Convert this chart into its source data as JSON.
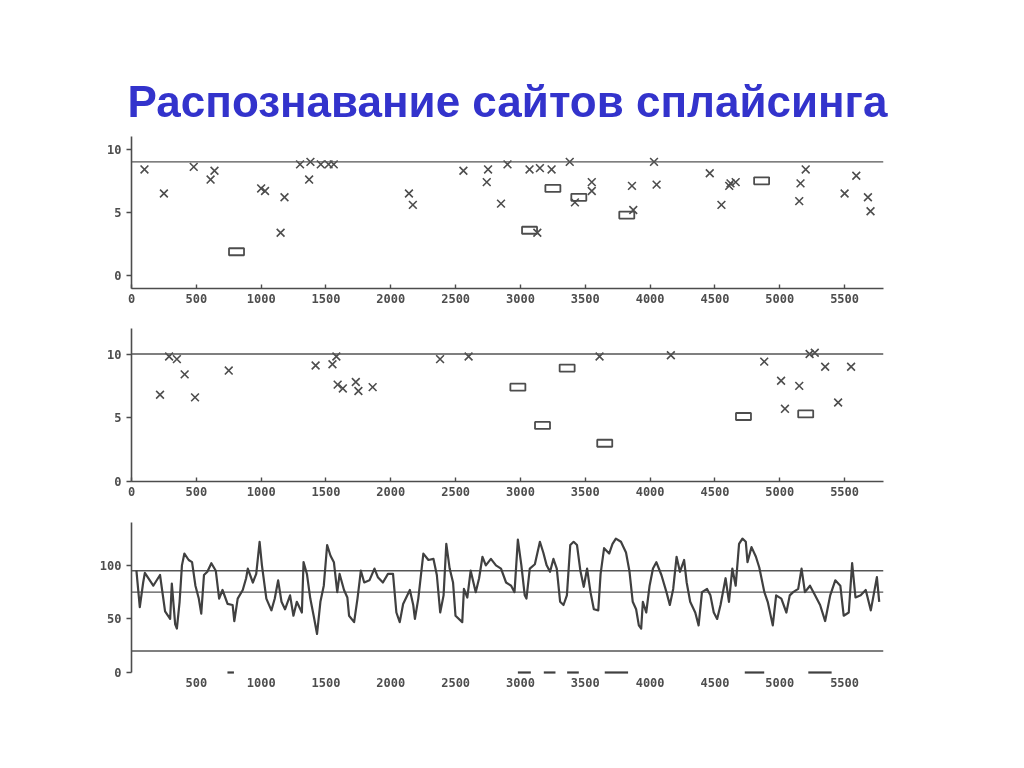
{
  "chart_data": [
    {
      "type": "scatter",
      "title": "Распознавание сайтов сплайсинга",
      "xlim": [
        0,
        5800
      ],
      "ylim": [
        -1,
        11
      ],
      "xticks": [
        0,
        500,
        1000,
        1500,
        2000,
        2500,
        3000,
        3500,
        4000,
        4500,
        5000,
        5500
      ],
      "yticks": [
        0,
        5,
        10
      ],
      "grid": false,
      "ref_lines": [
        {
          "axis": "y",
          "value": 9,
          "color": "#555555"
        }
      ],
      "series": [
        {
          "marker": "cross",
          "color": "#4d4d4d",
          "x": [
            100,
            250,
            480,
            640,
            610,
            1000,
            1030,
            1180,
            1150,
            1300,
            1370,
            1380,
            1460,
            1520,
            1560,
            2140,
            2170,
            2560,
            2750,
            2740,
            2850,
            2900,
            3070,
            3150,
            3240,
            3380,
            3550,
            3550,
            3420,
            3860,
            4050,
            4030,
            3870,
            3130,
            4460,
            4550,
            4620,
            4660,
            4610,
            5200,
            5160,
            5150,
            5590,
            5500,
            5680,
            5700
          ],
          "values": [
            8.4,
            6.5,
            8.6,
            8.3,
            7.6,
            6.9,
            6.7,
            6.2,
            3.4,
            8.8,
            7.6,
            9.0,
            8.8,
            8.8,
            8.8,
            6.5,
            5.6,
            8.3,
            8.4,
            7.4,
            5.7,
            8.8,
            8.4,
            8.5,
            8.4,
            9.0,
            7.4,
            6.7,
            5.8,
            7.1,
            7.2,
            9.0,
            5.2,
            3.4,
            8.1,
            5.6,
            7.3,
            7.4,
            7.1,
            8.4,
            7.3,
            5.9,
            7.9,
            6.5,
            6.2,
            5.1
          ]
        },
        {
          "marker": "square",
          "color": "#4d4d4d",
          "x": [
            810,
            3070,
            3250,
            3450,
            3820,
            4860
          ],
          "values": [
            1.9,
            3.6,
            6.9,
            6.2,
            4.8,
            7.5
          ]
        }
      ]
    },
    {
      "type": "scatter",
      "xlim": [
        0,
        5800
      ],
      "ylim": [
        0,
        12
      ],
      "xticks": [
        0,
        500,
        1000,
        1500,
        2000,
        2500,
        3000,
        3500,
        4000,
        4500,
        5000,
        5500
      ],
      "yticks": [
        0,
        5,
        10
      ],
      "grid": false,
      "ref_lines": [
        {
          "axis": "y",
          "value": 10,
          "color": "#555555"
        }
      ],
      "series": [
        {
          "marker": "cross",
          "color": "#4d4d4d",
          "x": [
            220,
            290,
            350,
            410,
            490,
            750,
            1420,
            1550,
            1580,
            1590,
            1630,
            1730,
            1750,
            1860,
            2380,
            2600,
            3610,
            4160,
            4880,
            5010,
            5150,
            5040,
            5230,
            5270,
            5350,
            5450,
            5550
          ],
          "values": [
            6.8,
            9.8,
            9.6,
            8.4,
            6.6,
            8.7,
            9.1,
            9.2,
            9.8,
            7.6,
            7.3,
            7.8,
            7.1,
            7.4,
            9.6,
            9.8,
            9.8,
            9.9,
            9.4,
            7.9,
            7.5,
            5.7,
            10.0,
            10.1,
            9.0,
            6.2,
            9.0
          ]
        },
        {
          "marker": "square",
          "color": "#4d4d4d",
          "x": [
            2980,
            3170,
            3360,
            3650,
            4720,
            5200
          ],
          "values": [
            7.4,
            4.4,
            8.9,
            3.0,
            5.1,
            5.3
          ]
        }
      ]
    },
    {
      "type": "line",
      "xlim": [
        0,
        5800
      ],
      "ylim": [
        0,
        140
      ],
      "xticks": [
        500,
        1000,
        1500,
        2000,
        2500,
        3000,
        3500,
        4000,
        4500,
        5000,
        5500
      ],
      "yticks": [
        0,
        50,
        100
      ],
      "grid": false,
      "ref_lines": [
        {
          "axis": "y",
          "value": 95,
          "color": "#555555"
        },
        {
          "axis": "y",
          "value": 75,
          "color": "#555555"
        },
        {
          "axis": "y",
          "value": 20,
          "color": "#555555"
        }
      ],
      "series": [
        {
          "color": "#404040",
          "x": [
            38,
            64,
            90,
            103,
            168,
            220,
            259,
            298,
            311,
            337,
            350,
            371,
            389,
            408,
            441,
            467,
            493,
            519,
            538,
            559,
            585,
            616,
            650,
            676,
            702,
            741,
            780,
            793,
            819,
            858,
            884,
            897,
            936,
            962,
            988,
            1006,
            1040,
            1079,
            1105,
            1131,
            1157,
            1184,
            1223,
            1249,
            1275,
            1314,
            1327,
            1353,
            1379,
            1405,
            1431,
            1457,
            1483,
            1509,
            1535,
            1561,
            1587,
            1605,
            1639,
            1665,
            1678,
            1717,
            1743,
            1769,
            1795,
            1835,
            1874,
            1900,
            1939,
            1978,
            2017,
            2043,
            2069,
            2095,
            2147,
            2173,
            2186,
            2212,
            2251,
            2290,
            2329,
            2355,
            2381,
            2407,
            2428,
            2454,
            2480,
            2499,
            2551,
            2564,
            2590,
            2616,
            2655,
            2681,
            2707,
            2733,
            2772,
            2811,
            2850,
            2889,
            2928,
            2954,
            2980,
            3007,
            3033,
            3046,
            3072,
            3111,
            3150,
            3176,
            3202,
            3228,
            3254,
            3280,
            3306,
            3332,
            3358,
            3384,
            3410,
            3436,
            3462,
            3488,
            3514,
            3540,
            3566,
            3600,
            3618,
            3645,
            3684,
            3710,
            3736,
            3775,
            3814,
            3840,
            3866,
            3892,
            3913,
            3931,
            3944,
            3970,
            3996,
            4022,
            4048,
            4087,
            4126,
            4152,
            4178,
            4204,
            4230,
            4262,
            4282,
            4309,
            4348,
            4374,
            4400,
            4439,
            4465,
            4491,
            4517,
            4543,
            4582,
            4608,
            4634,
            4660,
            4686,
            4712,
            4738,
            4751,
            4782,
            4816,
            4842,
            4881,
            4907,
            4946,
            4972,
            5012,
            5051,
            5077,
            5103,
            5142,
            5168,
            5194,
            5233,
            5272,
            5311,
            5350,
            5389,
            5428,
            5467,
            5493,
            5532,
            5558,
            5584,
            5624,
            5663,
            5702,
            5728,
            5749,
            5767
          ],
          "values": [
            95,
            61,
            84,
            93,
            81,
            91,
            57,
            50,
            83,
            45,
            41,
            66,
            100,
            111,
            105,
            103,
            81,
            69,
            55,
            91,
            94,
            102,
            95,
            69,
            77,
            64,
            63,
            48,
            69,
            77,
            88,
            97,
            84,
            92,
            122,
            100,
            69,
            58,
            69,
            86,
            66,
            59,
            72,
            53,
            66,
            56,
            103,
            92,
            69,
            53,
            36,
            66,
            81,
            119,
            109,
            103,
            75,
            92,
            77,
            70,
            53,
            47,
            69,
            95,
            84,
            86,
            97,
            89,
            84,
            92,
            92,
            56,
            47,
            64,
            77,
            63,
            50,
            69,
            111,
            105,
            106,
            91,
            56,
            72,
            120,
            97,
            84,
            53,
            47,
            78,
            70,
            95,
            75,
            88,
            108,
            100,
            106,
            100,
            97,
            84,
            81,
            75,
            124,
            100,
            72,
            69,
            97,
            101,
            122,
            112,
            100,
            94,
            106,
            97,
            66,
            63,
            72,
            119,
            122,
            119,
            95,
            80,
            97,
            75,
            59,
            58,
            92,
            116,
            111,
            120,
            125,
            122,
            112,
            95,
            66,
            59,
            44,
            41,
            66,
            56,
            81,
            97,
            103,
            91,
            75,
            63,
            78,
            108,
            94,
            105,
            84,
            66,
            56,
            44,
            75,
            78,
            72,
            56,
            50,
            63,
            88,
            66,
            97,
            81,
            120,
            125,
            122,
            103,
            117,
            108,
            98,
            75,
            66,
            44,
            72,
            69,
            56,
            72,
            75,
            78,
            97,
            75,
            81,
            72,
            63,
            48,
            72,
            86,
            81,
            53,
            56,
            102,
            70,
            72,
            77,
            58,
            75,
            89,
            66
          ]
        },
        {
          "color": "#404040",
          "x": [
            740,
            790
          ],
          "values": [
            0,
            0
          ]
        },
        {
          "color": "#404040",
          "x": [
            2980,
            3080
          ],
          "values": [
            0,
            0
          ]
        },
        {
          "color": "#404040",
          "x": [
            3180,
            3270
          ],
          "values": [
            0,
            0
          ]
        },
        {
          "color": "#404040",
          "x": [
            3360,
            3450
          ],
          "values": [
            0,
            0
          ]
        },
        {
          "color": "#404040",
          "x": [
            3650,
            3830
          ],
          "values": [
            0,
            0
          ]
        },
        {
          "color": "#404040",
          "x": [
            4730,
            4880
          ],
          "values": [
            0,
            0
          ]
        },
        {
          "color": "#404040",
          "x": [
            5220,
            5400
          ],
          "values": [
            0,
            0
          ]
        }
      ]
    }
  ]
}
